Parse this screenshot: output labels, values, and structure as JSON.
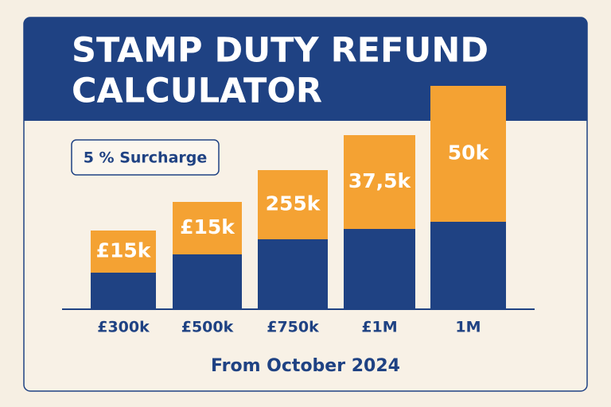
{
  "header": {
    "title_lines": [
      "STAMP DUTY REFUND",
      "CALCULATOR"
    ]
  },
  "badge": "5 % Surcharge",
  "bars": [
    {
      "category": "£300k",
      "label": "£15k"
    },
    {
      "category": "£500k",
      "label": "£15k"
    },
    {
      "category": "£750k",
      "label": "255k"
    },
    {
      "category": "£1M",
      "label": "37,5k"
    },
    {
      "category": "1M",
      "label": "50k"
    }
  ],
  "footer": "From October 2024"
}
